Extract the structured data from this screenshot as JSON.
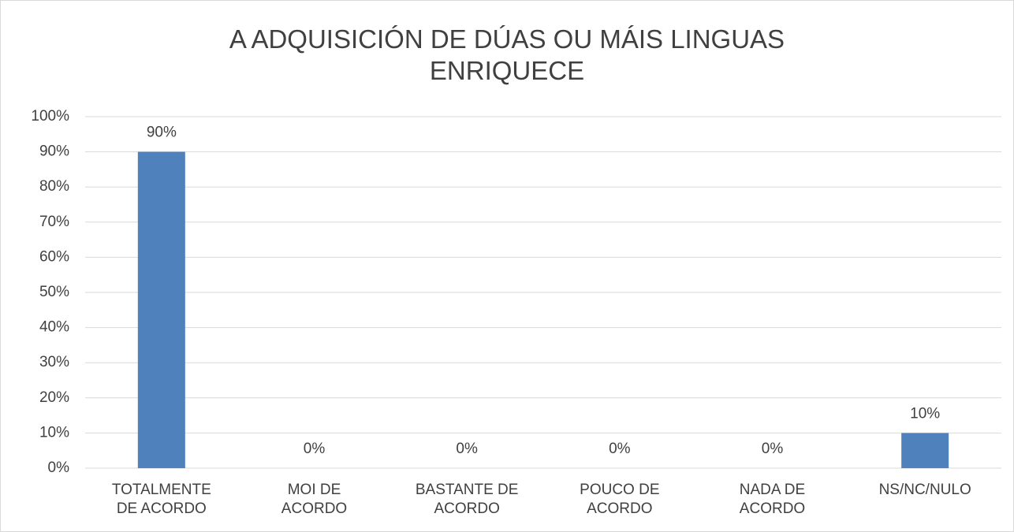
{
  "chart_data": {
    "type": "bar",
    "title": "A ADQUISICIÓN DE DÚAS OU MÁIS LINGUAS ENRIQUECE",
    "categories": [
      "TOTALMENTE DE ACORDO",
      "MOI DE ACORDO",
      "BASTANTE DE ACORDO",
      "POUCO DE ACORDO",
      "NADA DE ACORDO",
      "NS/NC/NULO"
    ],
    "values": [
      90,
      0,
      0,
      0,
      0,
      10
    ],
    "value_labels": [
      "90%",
      "0%",
      "0%",
      "0%",
      "0%",
      "10%"
    ],
    "color": "#4f81bd",
    "ylim": [
      0,
      100
    ],
    "yticks": [
      {
        "value": 0,
        "label": "0%"
      },
      {
        "value": 10,
        "label": "10%"
      },
      {
        "value": 20,
        "label": "20%"
      },
      {
        "value": 30,
        "label": "30%"
      },
      {
        "value": 40,
        "label": "40%"
      },
      {
        "value": 50,
        "label": "50%"
      },
      {
        "value": 60,
        "label": "60%"
      },
      {
        "value": 70,
        "label": "70%"
      },
      {
        "value": 80,
        "label": "80%"
      },
      {
        "value": 90,
        "label": "90%"
      },
      {
        "value": 100,
        "label": "100%"
      }
    ],
    "grid": true
  }
}
